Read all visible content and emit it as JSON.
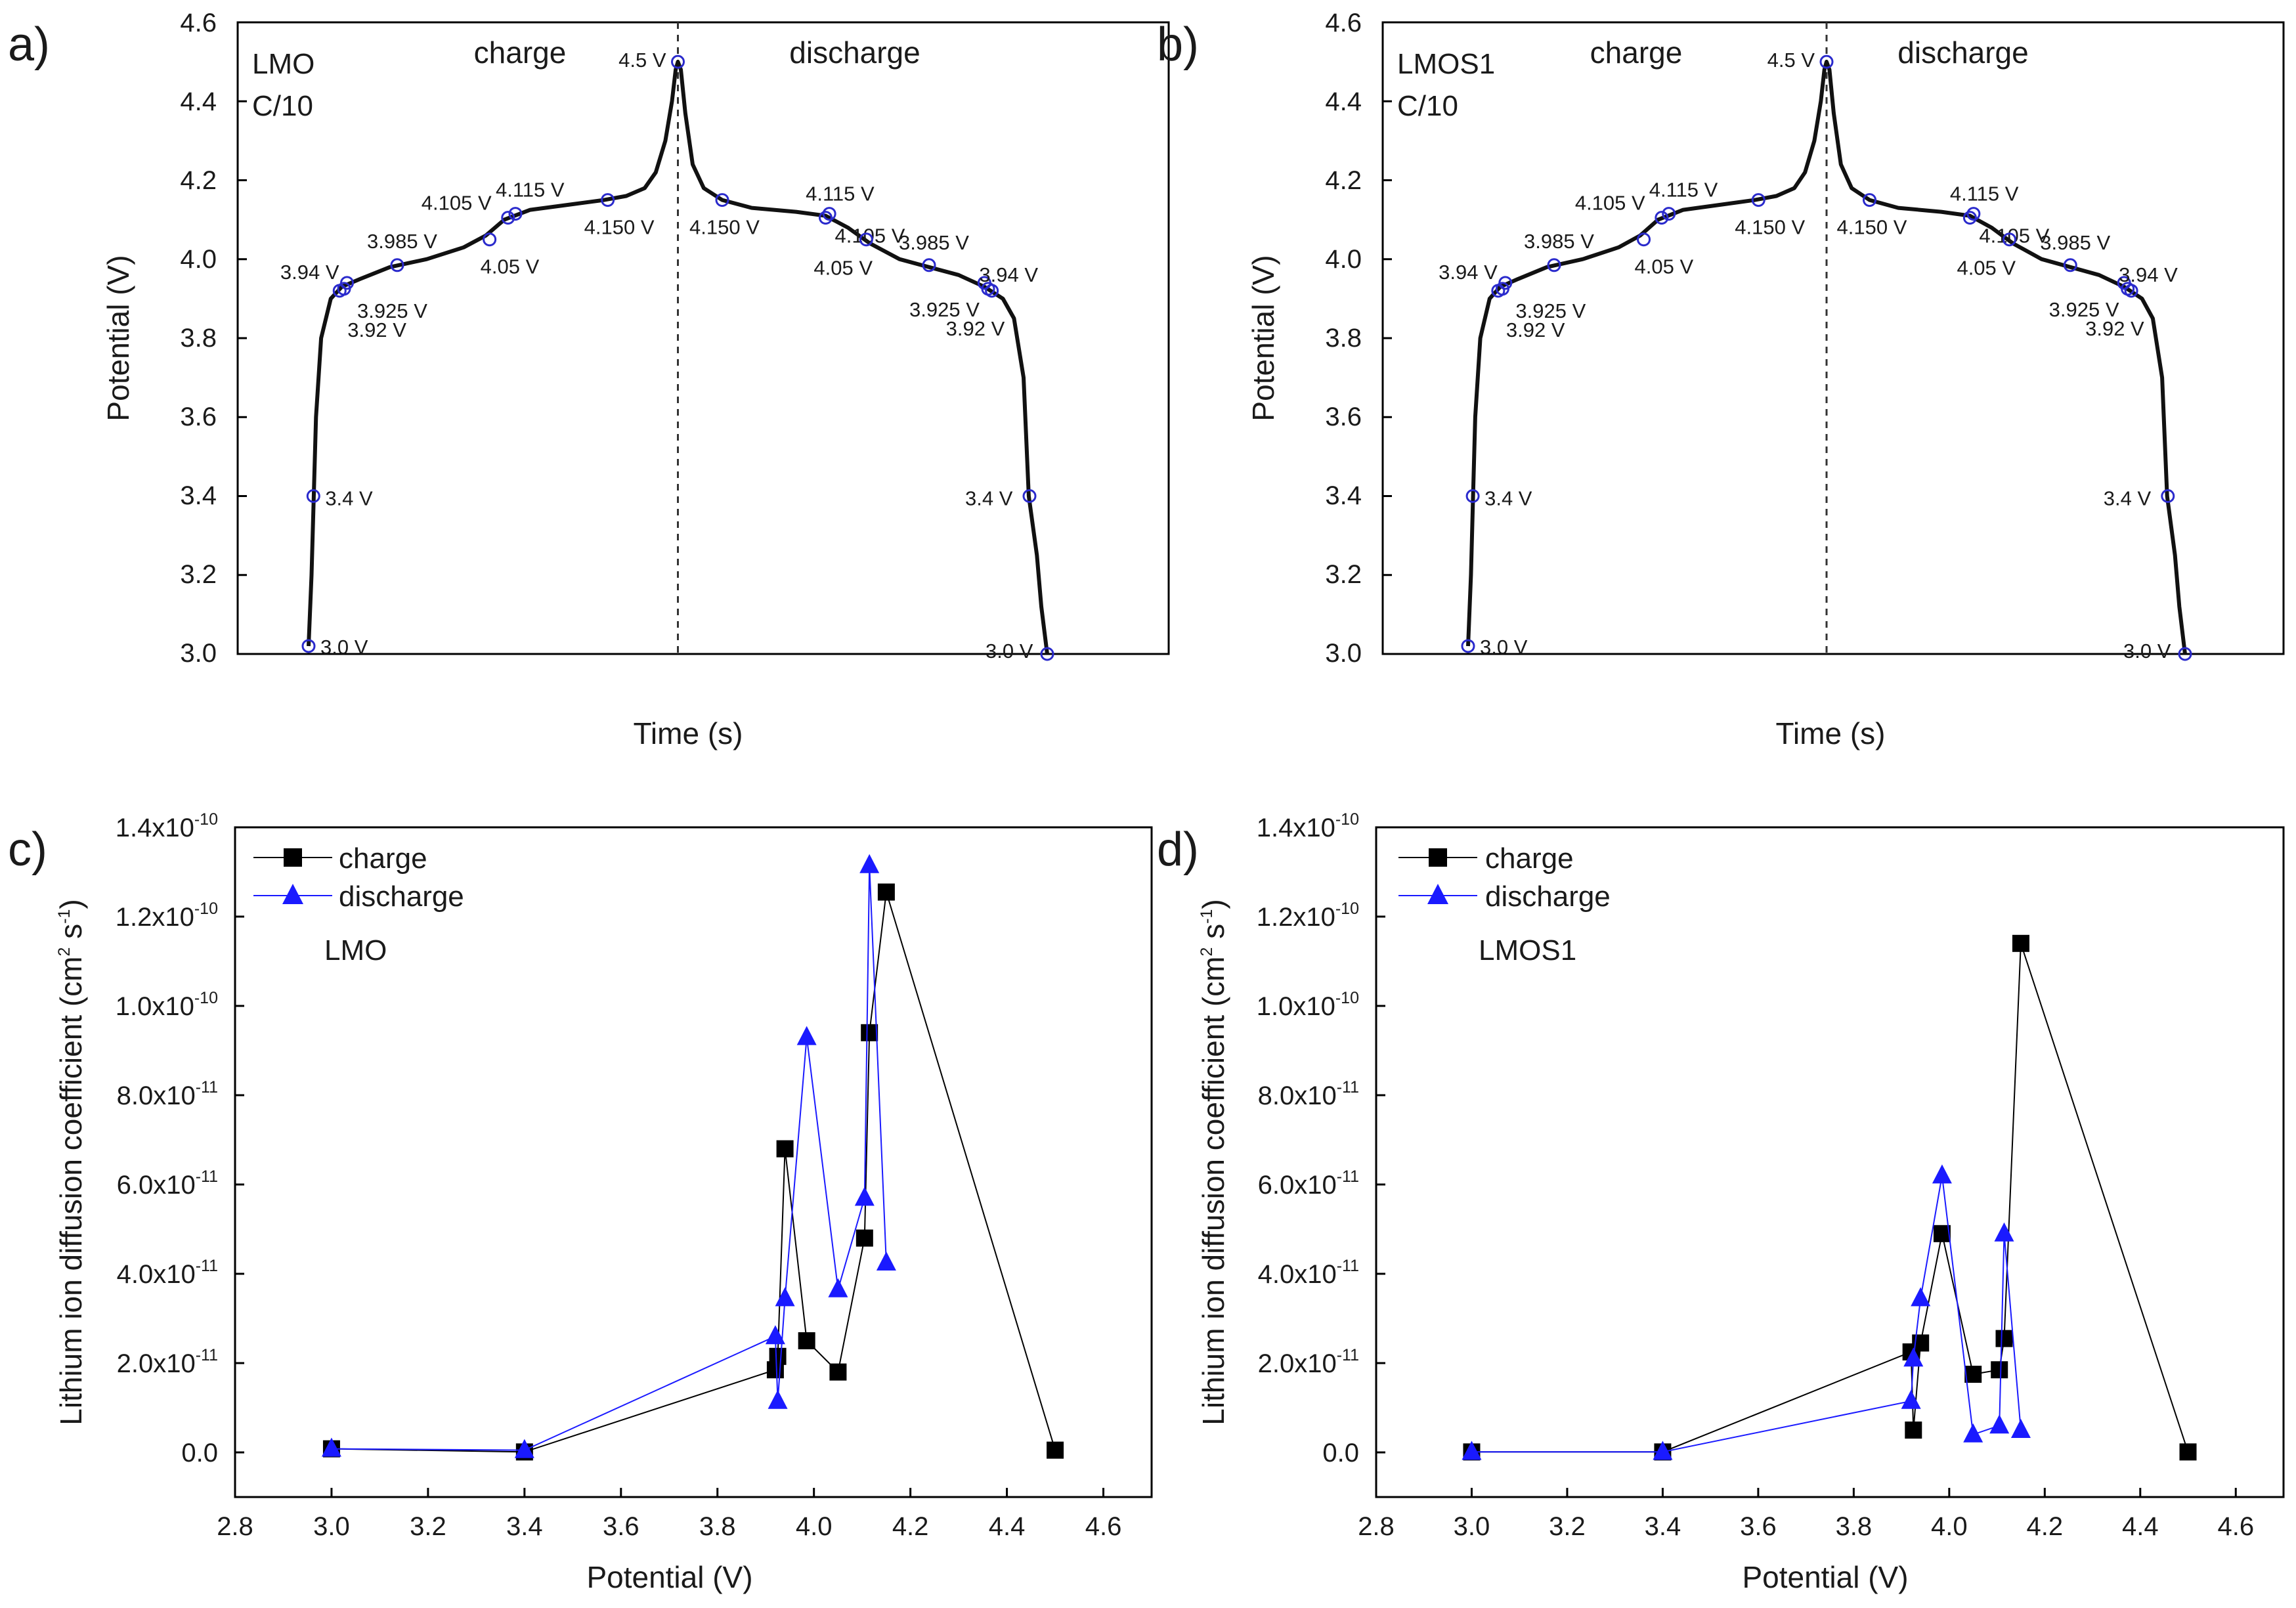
{
  "chart_data": [
    {
      "panel": "a)",
      "type": "line",
      "title": "",
      "xlabel": "Time (s)",
      "ylabel": "Potential (V)",
      "ylim": [
        3.0,
        4.6
      ],
      "yticks": [
        "3.0",
        "3.2",
        "3.4",
        "3.6",
        "3.8",
        "4.0",
        "4.2",
        "4.4",
        "4.6"
      ],
      "sample": "LMO",
      "rate": "C/10",
      "charge_label": "charge",
      "discharge_label": "discharge",
      "xlim": [
        0,
        100
      ],
      "divider_x": 50,
      "curve": [
        [
          0.0,
          3.02
        ],
        [
          0.4,
          3.2
        ],
        [
          0.7,
          3.4
        ],
        [
          1.0,
          3.6
        ],
        [
          1.7,
          3.8
        ],
        [
          3.0,
          3.9
        ],
        [
          4.5,
          3.93
        ],
        [
          7.0,
          3.95
        ],
        [
          11.0,
          3.98
        ],
        [
          16.0,
          4.0
        ],
        [
          21.0,
          4.03
        ],
        [
          24.0,
          4.06
        ],
        [
          26.5,
          4.1
        ],
        [
          30.0,
          4.125
        ],
        [
          36.0,
          4.14
        ],
        [
          40.0,
          4.15
        ],
        [
          43.0,
          4.16
        ],
        [
          45.5,
          4.18
        ],
        [
          47.0,
          4.22
        ],
        [
          48.3,
          4.3
        ],
        [
          49.2,
          4.4
        ],
        [
          49.7,
          4.48
        ],
        [
          50.0,
          4.5
        ],
        [
          50.4,
          4.48
        ],
        [
          51.0,
          4.37
        ],
        [
          52.0,
          4.24
        ],
        [
          53.5,
          4.18
        ],
        [
          56.0,
          4.15
        ],
        [
          60.0,
          4.13
        ],
        [
          66.0,
          4.12
        ],
        [
          70.0,
          4.11
        ],
        [
          73.0,
          4.08
        ],
        [
          76.0,
          4.04
        ],
        [
          80.0,
          4.0
        ],
        [
          84.0,
          3.98
        ],
        [
          88.0,
          3.96
        ],
        [
          91.5,
          3.93
        ],
        [
          94.0,
          3.9
        ],
        [
          95.5,
          3.85
        ],
        [
          96.8,
          3.7
        ],
        [
          97.5,
          3.4
        ],
        [
          98.6,
          3.25
        ],
        [
          99.2,
          3.12
        ],
        [
          100.0,
          3.0
        ]
      ],
      "markers": [
        {
          "t": 0.0,
          "v": 3.02,
          "label": "3.0 V",
          "ldx": 18,
          "ldy": 12,
          "anchor": "start"
        },
        {
          "t": 0.65,
          "v": 3.4,
          "label": "3.4 V",
          "ldx": 18,
          "ldy": 14,
          "anchor": "start"
        },
        {
          "t": 4.2,
          "v": 3.92,
          "label": "3.92 V",
          "ldx": 12,
          "ldy": 70,
          "anchor": "start"
        },
        {
          "t": 4.8,
          "v": 3.925,
          "label": "3.925 V",
          "ldx": 20,
          "ldy": 44,
          "anchor": "start"
        },
        {
          "t": 5.2,
          "v": 3.94,
          "label": "3.94 V",
          "ldx": -12,
          "ldy": -6,
          "anchor": "end"
        },
        {
          "t": 12.0,
          "v": 3.985,
          "label": "3.985 V",
          "ldx": -46,
          "ldy": -26,
          "anchor": "start"
        },
        {
          "t": 24.5,
          "v": 4.05,
          "label": "4.05 V",
          "ldx": -14,
          "ldy": 52,
          "anchor": "start"
        },
        {
          "t": 27.0,
          "v": 4.105,
          "label": "4.105 V",
          "ldx": -132,
          "ldy": -12,
          "anchor": "start"
        },
        {
          "t": 28.0,
          "v": 4.115,
          "label": "4.115 V",
          "ldx": -30,
          "ldy": -26,
          "anchor": "start"
        },
        {
          "t": 40.5,
          "v": 4.15,
          "label": "4.150 V",
          "ldx": -36,
          "ldy": 52,
          "anchor": "start"
        },
        {
          "t": 50.0,
          "v": 4.5,
          "label": "4.5 V",
          "ldx": -18,
          "ldy": 8,
          "anchor": "end"
        },
        {
          "t": 56.0,
          "v": 4.15,
          "label": "4.150 V",
          "ldx": -50,
          "ldy": 52,
          "anchor": "start"
        },
        {
          "t": 70.0,
          "v": 4.105,
          "label": "4.105 V",
          "ldx": 14,
          "ldy": 38,
          "anchor": "start"
        },
        {
          "t": 70.5,
          "v": 4.115,
          "label": "4.115 V",
          "ldx": -36,
          "ldy": -20,
          "anchor": "start"
        },
        {
          "t": 75.5,
          "v": 4.05,
          "label": "4.05 V",
          "ldx": -80,
          "ldy": 54,
          "anchor": "start"
        },
        {
          "t": 84.0,
          "v": 3.985,
          "label": "3.985 V",
          "ldx": -46,
          "ldy": -24,
          "anchor": "start"
        },
        {
          "t": 91.5,
          "v": 3.94,
          "label": "3.94 V",
          "ldx": -8,
          "ldy": -2,
          "anchor": "start"
        },
        {
          "t": 92.0,
          "v": 3.925,
          "label": "3.925 V",
          "ldx": -120,
          "ldy": 42,
          "anchor": "start"
        },
        {
          "t": 92.5,
          "v": 3.92,
          "label": "3.92 V",
          "ldx": -70,
          "ldy": 68,
          "anchor": "start"
        },
        {
          "t": 97.6,
          "v": 3.4,
          "label": "3.4 V",
          "ldx": -98,
          "ldy": 14,
          "anchor": "start"
        },
        {
          "t": 100.0,
          "v": 3.0,
          "label": "3.0 V",
          "ldx": -94,
          "ldy": 6,
          "anchor": "start"
        }
      ]
    },
    {
      "panel": "b)",
      "type": "line",
      "title": "",
      "xlabel": "Time (s)",
      "ylabel": "Potential (V)",
      "ylim": [
        3.0,
        4.6
      ],
      "yticks": [
        "3.0",
        "3.2",
        "3.4",
        "3.6",
        "3.8",
        "4.0",
        "4.2",
        "4.4",
        "4.6"
      ],
      "sample": "LMOS1",
      "rate": "C/10",
      "charge_label": "charge",
      "discharge_label": "discharge",
      "xlim": [
        0,
        100
      ],
      "divider_x": 50,
      "curve": [
        [
          0.0,
          3.02
        ],
        [
          0.4,
          3.2
        ],
        [
          0.7,
          3.4
        ],
        [
          1.0,
          3.6
        ],
        [
          1.7,
          3.8
        ],
        [
          3.0,
          3.9
        ],
        [
          4.5,
          3.93
        ],
        [
          7.0,
          3.95
        ],
        [
          11.0,
          3.98
        ],
        [
          16.0,
          4.0
        ],
        [
          21.0,
          4.03
        ],
        [
          24.0,
          4.06
        ],
        [
          26.5,
          4.1
        ],
        [
          30.0,
          4.125
        ],
        [
          36.0,
          4.14
        ],
        [
          40.0,
          4.15
        ],
        [
          43.0,
          4.16
        ],
        [
          45.5,
          4.18
        ],
        [
          47.0,
          4.22
        ],
        [
          48.3,
          4.3
        ],
        [
          49.2,
          4.4
        ],
        [
          49.7,
          4.48
        ],
        [
          50.0,
          4.5
        ],
        [
          50.4,
          4.48
        ],
        [
          51.0,
          4.37
        ],
        [
          52.0,
          4.24
        ],
        [
          53.5,
          4.18
        ],
        [
          56.0,
          4.15
        ],
        [
          60.0,
          4.13
        ],
        [
          66.0,
          4.12
        ],
        [
          70.0,
          4.11
        ],
        [
          73.0,
          4.08
        ],
        [
          76.0,
          4.04
        ],
        [
          80.0,
          4.0
        ],
        [
          84.0,
          3.98
        ],
        [
          88.0,
          3.96
        ],
        [
          91.5,
          3.93
        ],
        [
          94.0,
          3.9
        ],
        [
          95.5,
          3.85
        ],
        [
          96.8,
          3.7
        ],
        [
          97.5,
          3.4
        ],
        [
          98.6,
          3.25
        ],
        [
          99.2,
          3.12
        ],
        [
          100.0,
          3.0
        ]
      ],
      "markers": [
        {
          "t": 0.0,
          "v": 3.02,
          "label": "3.0 V",
          "ldx": 18,
          "ldy": 12,
          "anchor": "start"
        },
        {
          "t": 0.65,
          "v": 3.4,
          "label": "3.4 V",
          "ldx": 18,
          "ldy": 14,
          "anchor": "start"
        },
        {
          "t": 4.2,
          "v": 3.92,
          "label": "3.92 V",
          "ldx": 12,
          "ldy": 70,
          "anchor": "start"
        },
        {
          "t": 4.8,
          "v": 3.925,
          "label": "3.925 V",
          "ldx": 20,
          "ldy": 44,
          "anchor": "start"
        },
        {
          "t": 5.2,
          "v": 3.94,
          "label": "3.94 V",
          "ldx": -12,
          "ldy": -6,
          "anchor": "end"
        },
        {
          "t": 12.0,
          "v": 3.985,
          "label": "3.985 V",
          "ldx": -46,
          "ldy": -26,
          "anchor": "start"
        },
        {
          "t": 24.5,
          "v": 4.05,
          "label": "4.05 V",
          "ldx": -14,
          "ldy": 52,
          "anchor": "start"
        },
        {
          "t": 27.0,
          "v": 4.105,
          "label": "4.105 V",
          "ldx": -132,
          "ldy": -12,
          "anchor": "start"
        },
        {
          "t": 28.0,
          "v": 4.115,
          "label": "4.115 V",
          "ldx": -30,
          "ldy": -26,
          "anchor": "start"
        },
        {
          "t": 40.5,
          "v": 4.15,
          "label": "4.150 V",
          "ldx": -36,
          "ldy": 52,
          "anchor": "start"
        },
        {
          "t": 50.0,
          "v": 4.5,
          "label": "4.5 V",
          "ldx": -18,
          "ldy": 8,
          "anchor": "end"
        },
        {
          "t": 56.0,
          "v": 4.15,
          "label": "4.150 V",
          "ldx": -50,
          "ldy": 52,
          "anchor": "start"
        },
        {
          "t": 70.0,
          "v": 4.105,
          "label": "4.105 V",
          "ldx": 14,
          "ldy": 38,
          "anchor": "start"
        },
        {
          "t": 70.5,
          "v": 4.115,
          "label": "4.115 V",
          "ldx": -36,
          "ldy": -20,
          "anchor": "start"
        },
        {
          "t": 75.5,
          "v": 4.05,
          "label": "4.05 V",
          "ldx": -80,
          "ldy": 54,
          "anchor": "start"
        },
        {
          "t": 84.0,
          "v": 3.985,
          "label": "3.985 V",
          "ldx": -46,
          "ldy": -24,
          "anchor": "start"
        },
        {
          "t": 91.5,
          "v": 3.94,
          "label": "3.94 V",
          "ldx": -8,
          "ldy": -2,
          "anchor": "start"
        },
        {
          "t": 92.0,
          "v": 3.925,
          "label": "3.925 V",
          "ldx": -120,
          "ldy": 42,
          "anchor": "start"
        },
        {
          "t": 92.5,
          "v": 3.92,
          "label": "3.92 V",
          "ldx": -70,
          "ldy": 68,
          "anchor": "start"
        },
        {
          "t": 97.6,
          "v": 3.4,
          "label": "3.4 V",
          "ldx": -98,
          "ldy": 14,
          "anchor": "start"
        },
        {
          "t": 100.0,
          "v": 3.0,
          "label": "3.0 V",
          "ldx": -94,
          "ldy": 6,
          "anchor": "start"
        }
      ]
    },
    {
      "panel": "c)",
      "type": "line",
      "title": "",
      "xlabel": "Potential (V)",
      "ylabel_main": "Lithium ion diffusion coefficient (cm",
      "ylabel_sup1": "2",
      "ylabel_mid": " s",
      "ylabel_sup2": "-1",
      "ylabel_end": ")",
      "xlim": [
        2.8,
        4.7
      ],
      "ylim": [
        -1e-11,
        1.4e-10
      ],
      "xticks": [
        2.8,
        3.0,
        3.2,
        3.4,
        3.6,
        3.8,
        4.0,
        4.2,
        4.4,
        4.6
      ],
      "xtick_labels": [
        "2.8",
        "3.0",
        "3.2",
        "3.4",
        "3.6",
        "3.8",
        "4.0",
        "4.2",
        "4.4",
        "4.6"
      ],
      "yticks": [
        0,
        2e-11,
        4e-11,
        6e-11,
        8e-11,
        1e-10,
        1.2e-10,
        1.4e-10
      ],
      "ytick_labels": [
        {
          "m": "0.0",
          "e": ""
        },
        {
          "m": "2.0x10",
          "e": "-11"
        },
        {
          "m": "4.0x10",
          "e": "-11"
        },
        {
          "m": "6.0x10",
          "e": "-11"
        },
        {
          "m": "8.0x10",
          "e": "-11"
        },
        {
          "m": "1.0x10",
          "e": "-10"
        },
        {
          "m": "1.2x10",
          "e": "-10"
        },
        {
          "m": "1.4x10",
          "e": "-10"
        }
      ],
      "annotation": "LMO",
      "legend_position": "top-left",
      "series": [
        {
          "name": "charge",
          "marker": "square",
          "color": "#000000",
          "x": [
            3.0,
            3.4,
            3.92,
            3.925,
            3.94,
            3.985,
            4.05,
            4.105,
            4.115,
            4.15,
            4.5
          ],
          "y": [
            8e-13,
            1e-13,
            1.85e-11,
            2.15e-11,
            6.8e-11,
            2.5e-11,
            1.8e-11,
            4.8e-11,
            9.4e-11,
            1.255e-10,
            5e-13
          ]
        },
        {
          "name": "discharge",
          "marker": "triangle",
          "color": "#1a1aff",
          "x": [
            3.0,
            3.4,
            3.92,
            3.925,
            3.94,
            3.985,
            4.05,
            4.105,
            4.115,
            4.15
          ],
          "y": [
            8e-13,
            5e-13,
            2.6e-11,
            1.15e-11,
            3.45e-11,
            9.3e-11,
            3.65e-11,
            5.7e-11,
            1.315e-10,
            4.25e-11
          ]
        }
      ]
    },
    {
      "panel": "d)",
      "type": "line",
      "title": "",
      "xlabel": "Potential (V)",
      "ylabel_main": "Lithium ion diffusion coefficient (cm",
      "ylabel_sup1": "2",
      "ylabel_mid": " s",
      "ylabel_sup2": "-1",
      "ylabel_end": ")",
      "xlim": [
        2.8,
        4.7
      ],
      "ylim": [
        -1e-11,
        1.4e-10
      ],
      "xticks": [
        2.8,
        3.0,
        3.2,
        3.4,
        3.6,
        3.8,
        4.0,
        4.2,
        4.4,
        4.6
      ],
      "xtick_labels": [
        "2.8",
        "3.0",
        "3.2",
        "3.4",
        "3.6",
        "3.8",
        "4.0",
        "4.2",
        "4.4",
        "4.6"
      ],
      "yticks": [
        0,
        2e-11,
        4e-11,
        6e-11,
        8e-11,
        1e-10,
        1.2e-10,
        1.4e-10
      ],
      "ytick_labels": [
        {
          "m": "0.0",
          "e": ""
        },
        {
          "m": "2.0x10",
          "e": "-11"
        },
        {
          "m": "4.0x10",
          "e": "-11"
        },
        {
          "m": "6.0x10",
          "e": "-11"
        },
        {
          "m": "8.0x10",
          "e": "-11"
        },
        {
          "m": "1.0x10",
          "e": "-10"
        },
        {
          "m": "1.2x10",
          "e": "-10"
        },
        {
          "m": "1.4x10",
          "e": "-10"
        }
      ],
      "annotation": "LMOS1",
      "legend_position": "top-left",
      "series": [
        {
          "name": "charge",
          "marker": "square",
          "color": "#000000",
          "x": [
            3.0,
            3.4,
            3.92,
            3.925,
            3.94,
            3.985,
            4.05,
            4.105,
            4.115,
            4.15,
            4.5
          ],
          "y": [
            1e-13,
            1e-13,
            2.25e-11,
            5e-12,
            2.45e-11,
            4.9e-11,
            1.75e-11,
            1.85e-11,
            2.55e-11,
            1.14e-10,
            1e-13
          ]
        },
        {
          "name": "discharge",
          "marker": "triangle",
          "color": "#1a1aff",
          "x": [
            3.0,
            3.4,
            3.92,
            3.925,
            3.94,
            3.985,
            4.05,
            4.105,
            4.115,
            4.15
          ],
          "y": [
            1e-13,
            1e-13,
            1.15e-11,
            2.1e-11,
            3.45e-11,
            6.2e-11,
            4e-12,
            6e-12,
            4.9e-11,
            5e-12
          ]
        }
      ]
    }
  ],
  "colors": {
    "curve": "#111111",
    "marker_ring": "#2a2acc",
    "discharge": "#1a1aff",
    "charge": "#000000",
    "divider": "#333333"
  }
}
